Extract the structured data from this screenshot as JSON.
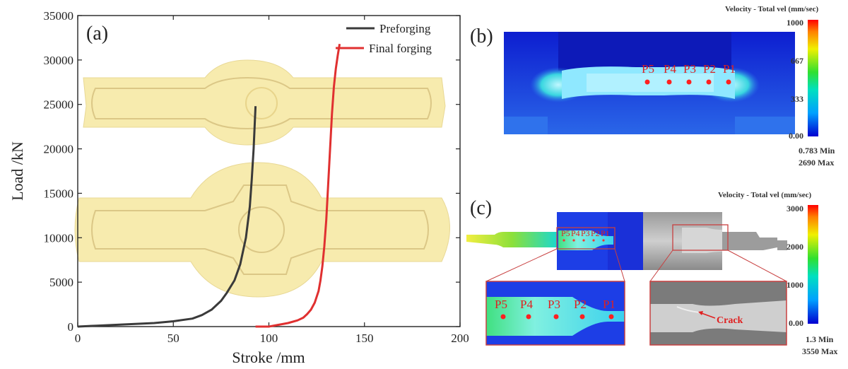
{
  "panel_a": {
    "letter": "(a)",
    "legend": [
      "Preforging",
      "Final forging"
    ]
  },
  "panel_b": {
    "letter": "(b)",
    "colorbar_title": "Velocity - Total vel (mm/sec)",
    "colorbar_ticks": [
      "1000",
      "667",
      "333",
      "0.00"
    ],
    "min_text": "0.783 Min",
    "max_text": "2690  Max",
    "points": [
      "P5",
      "P4",
      "P3",
      "P2",
      "P1"
    ]
  },
  "panel_c": {
    "letter": "(c)",
    "colorbar_title": "Velocity - Total vel (mm/sec)",
    "colorbar_ticks": [
      "3000",
      "2000",
      "1000",
      "0.00"
    ],
    "min_text": "1.3  Min",
    "max_text": "3550  Max",
    "points": [
      "P5",
      "P4",
      "P3",
      "P2",
      "P1"
    ],
    "crack_label": "Crack"
  },
  "colors": {
    "preforging": "#3a3a3a",
    "final_forging": "#e03030",
    "part_fill": "#f7e9a6"
  },
  "chart_data": {
    "type": "line",
    "xlabel": "Stroke /mm",
    "ylabel": "Load /kN",
    "xlim": [
      0,
      200
    ],
    "ylim": [
      0,
      35000
    ],
    "xticks": [
      0,
      50,
      100,
      150,
      200
    ],
    "yticks": [
      0,
      5000,
      10000,
      15000,
      20000,
      25000,
      30000,
      35000
    ],
    "grid": false,
    "legend_position": "top-right",
    "series": [
      {
        "name": "Preforging",
        "x": [
          0,
          10,
          20,
          30,
          40,
          50,
          60,
          65,
          70,
          75,
          78,
          82,
          85,
          88,
          90,
          91,
          92,
          93
        ],
        "y": [
          0,
          100,
          200,
          300,
          400,
          600,
          900,
          1300,
          1900,
          2900,
          3800,
          5200,
          7000,
          10000,
          13500,
          16500,
          20000,
          24800
        ]
      },
      {
        "name": "Final forging",
        "x": [
          93,
          100,
          105,
          110,
          115,
          118,
          120,
          122,
          124,
          126,
          127,
          128,
          129,
          130,
          131,
          132,
          133,
          134,
          135,
          136,
          137
        ],
        "y": [
          0,
          0,
          200,
          400,
          700,
          1000,
          1400,
          1900,
          2700,
          4000,
          5200,
          6800,
          9000,
          12000,
          16000,
          20000,
          24000,
          27000,
          29000,
          30500,
          31800
        ]
      }
    ]
  }
}
